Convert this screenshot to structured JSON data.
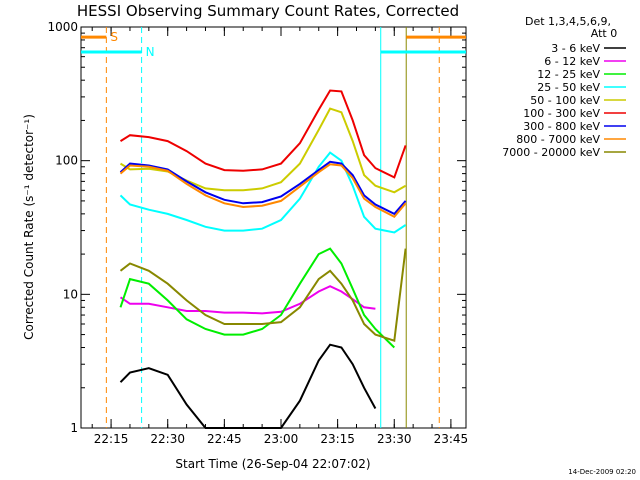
{
  "chart_data": {
    "type": "line",
    "title": "HESSI Observing Summary Count Rates, Corrected",
    "xlabel": "Start Time (26-Sep-04 22:07:02)",
    "ylabel": "Corrected Count Rate (s⁻¹ detector⁻¹)",
    "y_scale": "log",
    "ylim": [
      1,
      1000
    ],
    "xlim": [
      "22:07:02",
      "23:49:00"
    ],
    "x_ticks": [
      "22:15",
      "22:30",
      "22:45",
      "23:00",
      "23:15",
      "23:30",
      "23:45"
    ],
    "y_ticks": [
      "1",
      "10",
      "100",
      "1000"
    ],
    "legend_header": [
      "Det 1,3,4,5,6,9,",
      "Att 0"
    ],
    "legend_position": "right, outside plot",
    "x": [
      "22:17:30",
      "22:20:00",
      "22:25:00",
      "22:30:00",
      "22:35:00",
      "22:40:00",
      "22:45:00",
      "22:50:00",
      "22:55:00",
      "23:00:00",
      "23:05:00",
      "23:10:00",
      "23:13:00",
      "23:16:00",
      "23:19:00",
      "23:22:00",
      "23:25:00",
      "23:30:00",
      "23:33:00"
    ],
    "series": [
      {
        "name": "3 - 6 keV",
        "color": "#000000",
        "values": [
          2.2,
          2.6,
          2.8,
          2.5,
          1.5,
          1.0,
          1.0,
          1.0,
          1.0,
          1.0,
          1.6,
          3.2,
          4.2,
          4.0,
          3.0,
          2.0,
          1.4,
          null,
          null
        ]
      },
      {
        "name": "6 - 12 keV",
        "color": "#ee00ee",
        "values": [
          9.5,
          8.5,
          8.5,
          8.0,
          7.5,
          7.5,
          7.3,
          7.3,
          7.2,
          7.4,
          8.5,
          10.5,
          11.5,
          10.5,
          9.2,
          8.0,
          7.8,
          null,
          null
        ]
      },
      {
        "name": "12 - 25 keV",
        "color": "#00ee00",
        "values": [
          8.0,
          13.0,
          12.0,
          9.0,
          6.5,
          5.5,
          5.0,
          5.0,
          5.5,
          7.0,
          12.0,
          20.0,
          22.0,
          17.0,
          11.0,
          7.0,
          5.5,
          4.0,
          null
        ]
      },
      {
        "name": "25 - 50 keV",
        "color": "#00ffff",
        "values": [
          55,
          47,
          43,
          40,
          36,
          32,
          30,
          30,
          31,
          36,
          52,
          90,
          115,
          100,
          65,
          38,
          31,
          29,
          33
        ]
      },
      {
        "name": "50 - 100 keV",
        "color": "#cccc00",
        "values": [
          95,
          86,
          87,
          83,
          71,
          62,
          60,
          60,
          62,
          69,
          95,
          170,
          245,
          230,
          140,
          78,
          65,
          58,
          65
        ]
      },
      {
        "name": "100 - 300 keV",
        "color": "#ee0000",
        "values": [
          140,
          155,
          150,
          140,
          118,
          95,
          85,
          84,
          86,
          95,
          135,
          240,
          335,
          330,
          200,
          110,
          88,
          75,
          130
        ]
      },
      {
        "name": "300 - 800 keV",
        "color": "#0000ee",
        "values": [
          82,
          95,
          92,
          86,
          70,
          58,
          51,
          48,
          49,
          54,
          67,
          85,
          98,
          95,
          78,
          55,
          47,
          40,
          50
        ]
      },
      {
        "name": "800 - 7000 keV",
        "color": "#ff8800",
        "values": [
          80,
          92,
          90,
          84,
          67,
          55,
          48,
          45,
          46,
          50,
          64,
          82,
          94,
          92,
          74,
          52,
          45,
          38,
          48
        ]
      },
      {
        "name": "7000 - 20000 keV",
        "color": "#888800",
        "values": [
          15,
          17,
          15,
          12,
          9,
          7,
          6,
          6,
          6,
          6.2,
          8,
          13,
          15,
          12,
          9,
          6,
          5,
          4.5,
          22
        ]
      }
    ],
    "vertical_markers": [
      {
        "time": "22:13:45",
        "color": "#ff8800",
        "style": "dashed"
      },
      {
        "time": "22:23:05",
        "color": "#00ffff",
        "style": "dashed"
      },
      {
        "time": "23:26:25",
        "color": "#00ffff",
        "style": "solid"
      },
      {
        "time": "23:33:10",
        "color": "#888800",
        "style": "solid"
      },
      {
        "time": "23:41:55",
        "color": "#ff8800",
        "style": "dashed"
      }
    ],
    "flag_bars": [
      {
        "label": "S",
        "color": "#ff8800",
        "intervals": [
          [
            "22:07:02",
            "22:13:45"
          ],
          [
            "23:33:10",
            "23:49:00"
          ]
        ],
        "level": 840
      },
      {
        "label": "N",
        "color": "#00ffff",
        "intervals": [
          [
            "22:07:02",
            "22:23:05"
          ],
          [
            "23:26:25",
            "23:49:00"
          ]
        ],
        "level": 650
      }
    ],
    "timestamp": "14-Dec-2009 02:20"
  }
}
